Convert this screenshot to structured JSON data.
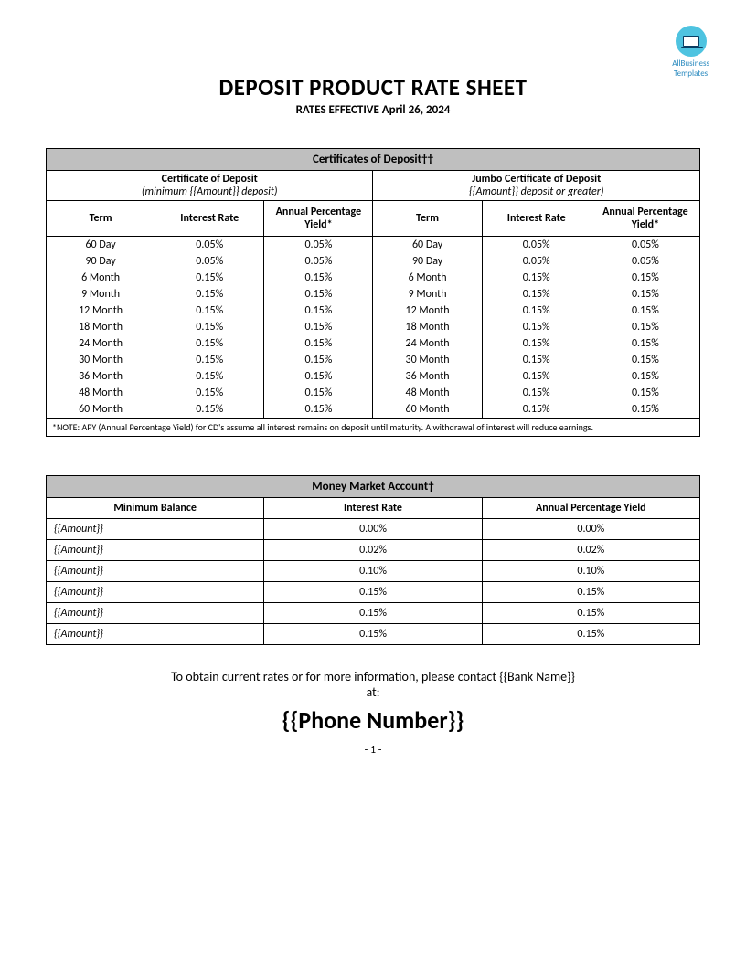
{
  "logo": {
    "line1": "AllBusiness",
    "line2": "Templates"
  },
  "title": "DEPOSIT PRODUCT RATE SHEET",
  "subtitle": "RATES EFFECTIVE April 26, 2024",
  "cd": {
    "header": "Certificates of Deposit††",
    "left": {
      "title": "Certificate of Deposit",
      "sub": "(minimum {{Amount}} deposit)",
      "cols": [
        "Term",
        "Interest Rate",
        "Annual Percentage Yield*"
      ]
    },
    "right": {
      "title": "Jumbo Certificate of Deposit",
      "sub": "{{Amount}} deposit or greater)",
      "cols": [
        "Term",
        "Interest Rate",
        "Annual Percentage Yield*"
      ]
    },
    "rows": [
      {
        "term": "60 Day",
        "ir": "0.05%",
        "apy": "0.05%",
        "jterm": "60 Day",
        "jir": "0.05%",
        "japy": "0.05%"
      },
      {
        "term": "90 Day",
        "ir": "0.05%",
        "apy": "0.05%",
        "jterm": "90 Day",
        "jir": "0.05%",
        "japy": "0.05%"
      },
      {
        "term": "6 Month",
        "ir": "0.15%",
        "apy": "0.15%",
        "jterm": "6 Month",
        "jir": "0.15%",
        "japy": "0.15%"
      },
      {
        "term": "9 Month",
        "ir": "0.15%",
        "apy": "0.15%",
        "jterm": "9 Month",
        "jir": "0.15%",
        "japy": "0.15%"
      },
      {
        "term": "12 Month",
        "ir": "0.15%",
        "apy": "0.15%",
        "jterm": "12 Month",
        "jir": "0.15%",
        "japy": "0.15%"
      },
      {
        "term": "18 Month",
        "ir": "0.15%",
        "apy": "0.15%",
        "jterm": "18 Month",
        "jir": "0.15%",
        "japy": "0.15%"
      },
      {
        "term": "24 Month",
        "ir": "0.15%",
        "apy": "0.15%",
        "jterm": "24 Month",
        "jir": "0.15%",
        "japy": "0.15%"
      },
      {
        "term": "30 Month",
        "ir": "0.15%",
        "apy": "0.15%",
        "jterm": "30 Month",
        "jir": "0.15%",
        "japy": "0.15%"
      },
      {
        "term": "36 Month",
        "ir": "0.15%",
        "apy": "0.15%",
        "jterm": "36 Month",
        "jir": "0.15%",
        "japy": "0.15%"
      },
      {
        "term": "48 Month",
        "ir": "0.15%",
        "apy": "0.15%",
        "jterm": "48 Month",
        "jir": "0.15%",
        "japy": "0.15%"
      },
      {
        "term": "60 Month",
        "ir": "0.15%",
        "apy": "0.15%",
        "jterm": "60 Month",
        "jir": "0.15%",
        "japy": "0.15%"
      }
    ],
    "note": "*NOTE: APY (Annual Percentage Yield) for CD's assume all interest remains on deposit until maturity.   A withdrawal of interest will reduce earnings."
  },
  "mm": {
    "header": "Money Market Account†",
    "cols": [
      "Minimum Balance",
      "Interest Rate",
      "Annual Percentage Yield"
    ],
    "rows": [
      {
        "bal": "{{Amount}}",
        "ir": "0.00%",
        "apy": "0.00%"
      },
      {
        "bal": "{{Amount}}",
        "ir": "0.02%",
        "apy": "0.02%"
      },
      {
        "bal": "{{Amount}}",
        "ir": "0.10%",
        "apy": "0.10%"
      },
      {
        "bal": "{{Amount}}",
        "ir": "0.15%",
        "apy": "0.15%"
      },
      {
        "bal": "{{Amount}}",
        "ir": "0.15%",
        "apy": "0.15%"
      },
      {
        "bal": "{{Amount}}",
        "ir": "0.15%",
        "apy": "0.15%"
      }
    ]
  },
  "contact": {
    "text1": "To obtain current rates or for more information, please contact {{Bank Name}}",
    "text2": "at:",
    "phone": "{{Phone Number}}"
  },
  "page": "- 1 -",
  "colors": {
    "header_bg": "#bfbfbf",
    "logo_bg": "#4ec3e0",
    "logo_text": "#2a8abf"
  }
}
